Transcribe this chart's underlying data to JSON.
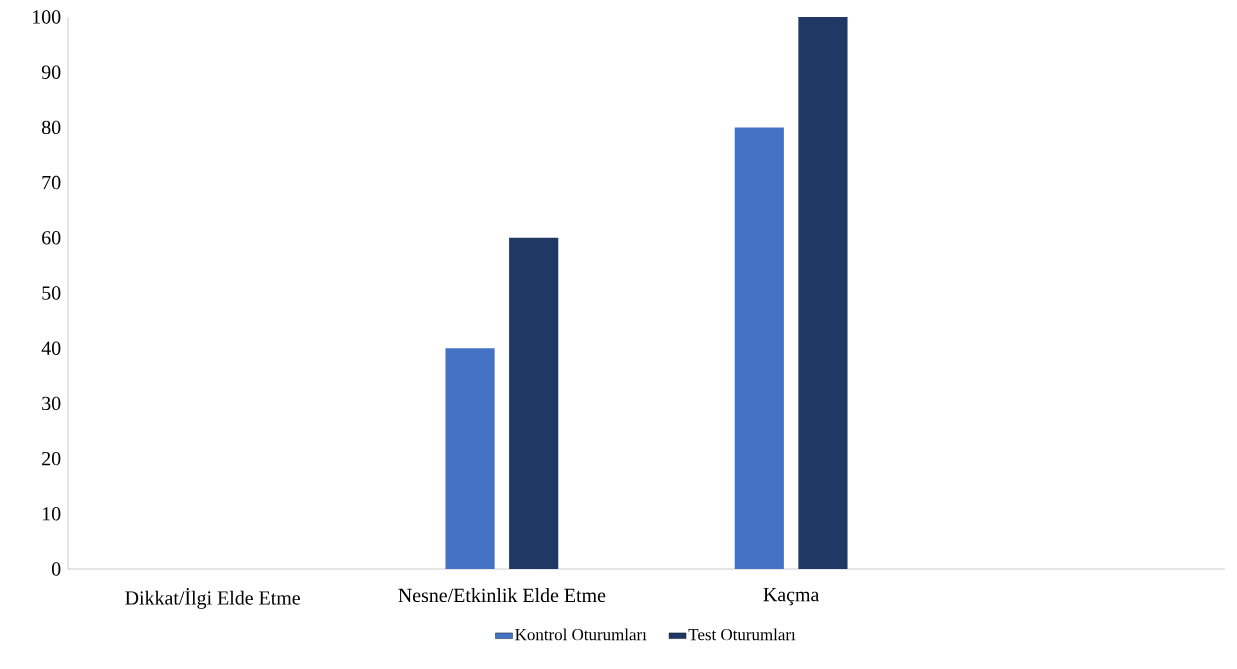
{
  "chart_data": {
    "type": "bar",
    "categories": [
      "Dikkat/İlgi Elde Etme",
      "Nesne/Etkinlik Elde Etme",
      "Kaçma",
      null
    ],
    "series": [
      {
        "name": "Kontrol Oturumları",
        "color": "#4472c4",
        "values": [
          0,
          40,
          80,
          0
        ]
      },
      {
        "name": "Test Oturumları",
        "color": "#203864",
        "values": [
          0,
          60,
          100,
          0
        ]
      }
    ],
    "ylim": [
      0,
      100
    ],
    "yticks": [
      0,
      10,
      20,
      30,
      40,
      50,
      60,
      70,
      80,
      90,
      100
    ],
    "legend": "bottom"
  }
}
